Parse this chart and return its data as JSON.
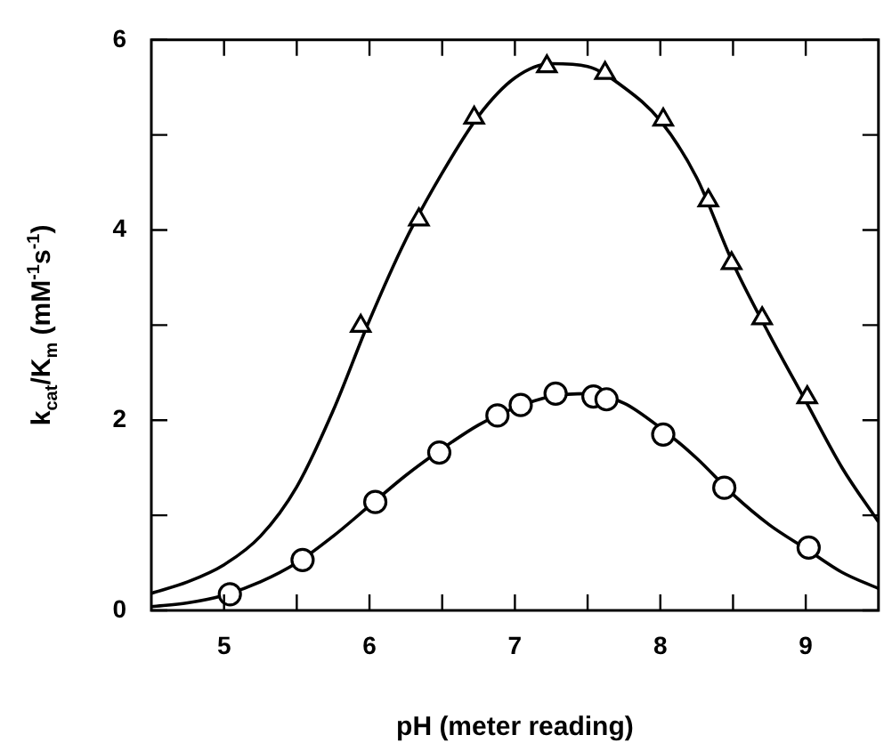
{
  "chart_data": {
    "type": "scatter",
    "xlabel": "pH (meter reading)",
    "ylabel": "k$_{cat}$/K$_{m}$ (mM$^{-1}$s$^{-1}$)",
    "xlim": [
      4.5,
      9.5
    ],
    "xticks": [
      5,
      {
        "value": 5.5,
        "label": null
      },
      6,
      {
        "value": 6.5,
        "label": null
      },
      7,
      {
        "value": 7.5,
        "label": null
      },
      8,
      {
        "value": 8.5,
        "label": null
      },
      9
    ],
    "ylim": [
      0,
      6
    ],
    "yticks": [
      0,
      {
        "value": 1,
        "label": null
      },
      2,
      {
        "value": 3,
        "label": null
      },
      4,
      {
        "value": 5,
        "label": null
      },
      6
    ],
    "grid": false,
    "legend": false,
    "series": [
      {
        "marker": "triangle",
        "color": "#000000",
        "x": [
          5.94,
          6.34,
          6.72,
          7.22,
          7.62,
          8.02,
          8.33,
          8.49,
          8.7,
          9.01
        ],
        "values": [
          2.99,
          4.11,
          5.18,
          5.72,
          5.65,
          5.16,
          4.31,
          3.65,
          3.07,
          2.24
        ]
      },
      {
        "marker": "circle",
        "color": "#000000",
        "x": [
          5.04,
          5.54,
          6.04,
          6.48,
          6.88,
          7.04,
          7.28,
          7.54,
          7.63,
          8.02,
          8.44,
          9.02
        ],
        "values": [
          0.17,
          0.53,
          1.14,
          1.66,
          2.05,
          2.16,
          2.28,
          2.25,
          2.22,
          1.85,
          1.29,
          0.66
        ]
      },
      {
        "type": "line",
        "marker": "none",
        "color": "#000000",
        "x": [
          4.5,
          4.75,
          5,
          5.25,
          5.5,
          5.75,
          6,
          6.25,
          6.5,
          6.75,
          7,
          7.25,
          7.5,
          7.75,
          8,
          8.25,
          8.5,
          8.75,
          9,
          9.25,
          9.5
        ],
        "values": [
          0.18,
          0.3,
          0.48,
          0.78,
          1.3,
          2.1,
          3.05,
          3.9,
          4.6,
          5.2,
          5.6,
          5.75,
          5.72,
          5.5,
          5.15,
          4.55,
          3.65,
          2.9,
          2.2,
          1.5,
          0.93
        ]
      },
      {
        "type": "line",
        "marker": "none",
        "color": "#000000",
        "x": [
          4.5,
          4.75,
          5,
          5.25,
          5.5,
          5.75,
          6,
          6.25,
          6.5,
          6.75,
          7,
          7.25,
          7.5,
          7.75,
          8,
          8.25,
          8.5,
          8.75,
          9,
          9.25,
          9.5
        ],
        "values": [
          0.04,
          0.08,
          0.16,
          0.3,
          0.5,
          0.78,
          1.1,
          1.42,
          1.7,
          1.95,
          2.13,
          2.25,
          2.28,
          2.18,
          1.92,
          1.6,
          1.22,
          0.9,
          0.65,
          0.4,
          0.23
        ]
      }
    ]
  }
}
